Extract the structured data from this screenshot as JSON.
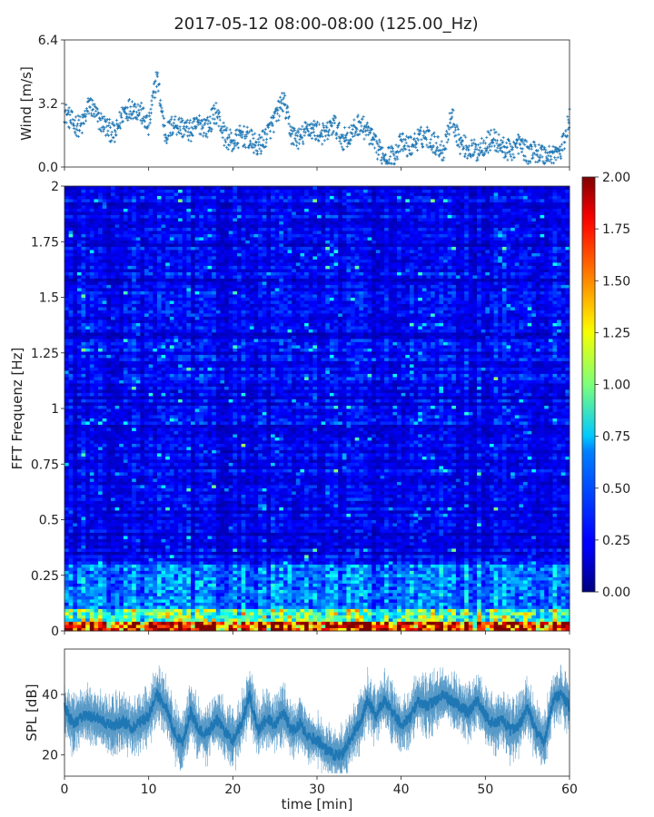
{
  "chart_data": [
    {
      "type": "scatter",
      "panel": "wind",
      "title": "2017-05-12 08:00-08:00 (125.00_Hz)",
      "ylabel": "Wind [m/s]",
      "xlim": [
        0,
        60
      ],
      "ylim": [
        0.0,
        6.4
      ],
      "yticks": [
        "0.0",
        "3.2",
        "6.4"
      ],
      "color": "#1f77b4",
      "marker": "plus",
      "x": [
        0,
        1,
        2,
        3,
        4,
        5,
        6,
        7,
        8,
        9,
        10,
        10.5,
        11,
        11.5,
        12,
        13,
        14,
        15,
        16,
        17,
        18,
        19,
        20,
        21,
        22,
        23,
        24,
        25,
        26,
        27,
        28,
        29,
        30,
        31,
        32,
        33,
        34,
        35,
        36,
        37,
        38,
        39,
        40,
        41,
        42,
        43,
        44,
        45,
        46,
        47,
        48,
        49,
        50,
        51,
        52,
        53,
        54,
        55,
        56,
        57,
        58,
        59,
        60
      ],
      "y": [
        2.8,
        2.2,
        2.0,
        3.2,
        2.4,
        2.0,
        1.6,
        2.8,
        3.0,
        2.8,
        2.0,
        3.4,
        4.6,
        3.0,
        1.6,
        2.2,
        2.0,
        1.8,
        2.2,
        2.0,
        2.8,
        1.6,
        1.2,
        1.6,
        1.4,
        1.0,
        1.6,
        2.4,
        3.4,
        1.6,
        1.4,
        2.0,
        1.8,
        1.6,
        2.2,
        1.4,
        1.6,
        2.2,
        1.8,
        1.0,
        0.6,
        0.5,
        1.2,
        1.0,
        1.4,
        1.6,
        1.2,
        0.8,
        2.6,
        1.2,
        0.9,
        0.8,
        1.2,
        1.4,
        1.0,
        0.8,
        1.2,
        0.7,
        0.8,
        0.6,
        0.6,
        0.8,
        2.4
      ]
    },
    {
      "type": "heatmap",
      "panel": "spectrogram",
      "ylabel": "FFT Frequenz [Hz]",
      "xlim": [
        0,
        60
      ],
      "ylim": [
        0,
        2
      ],
      "yticks": [
        "0",
        "0.25",
        "0.5",
        "0.75",
        "1",
        "1.25",
        "1.5",
        "1.75",
        "2"
      ],
      "colormap": "jet",
      "colorbar": {
        "min": 0.0,
        "max": 2.0,
        "ticks": [
          "0.00",
          "0.25",
          "0.50",
          "0.75",
          "1.00",
          "1.25",
          "1.50",
          "1.75",
          "2.00"
        ]
      }
    },
    {
      "type": "line",
      "panel": "spl",
      "ylabel": "SPL [dB]",
      "xlabel": "time [min]",
      "xlim": [
        0,
        60
      ],
      "ylim": [
        13,
        55
      ],
      "xticks": [
        "0",
        "10",
        "20",
        "30",
        "40",
        "50",
        "60"
      ],
      "yticks": [
        "20",
        "40"
      ],
      "color": "#1f77b4",
      "x": [
        0,
        1,
        2,
        3,
        4,
        5,
        6,
        7,
        8,
        9,
        10,
        11,
        12,
        13,
        14,
        15,
        16,
        17,
        18,
        19,
        20,
        21,
        22,
        23,
        24,
        25,
        26,
        27,
        28,
        29,
        30,
        31,
        32,
        33,
        34,
        35,
        36,
        37,
        38,
        39,
        40,
        41,
        42,
        43,
        44,
        45,
        46,
        47,
        48,
        49,
        50,
        51,
        52,
        53,
        54,
        55,
        56,
        57,
        58,
        59,
        60
      ],
      "y": [
        36,
        30,
        33,
        33,
        32,
        30,
        30,
        31,
        29,
        31,
        33,
        40,
        36,
        28,
        24,
        34,
        28,
        27,
        32,
        28,
        25,
        30,
        40,
        28,
        32,
        30,
        34,
        28,
        30,
        26,
        25,
        22,
        20,
        20,
        26,
        30,
        38,
        33,
        38,
        34,
        30,
        32,
        38,
        36,
        38,
        40,
        38,
        36,
        34,
        38,
        33,
        30,
        32,
        28,
        30,
        36,
        28,
        24,
        38,
        40,
        36
      ]
    }
  ]
}
